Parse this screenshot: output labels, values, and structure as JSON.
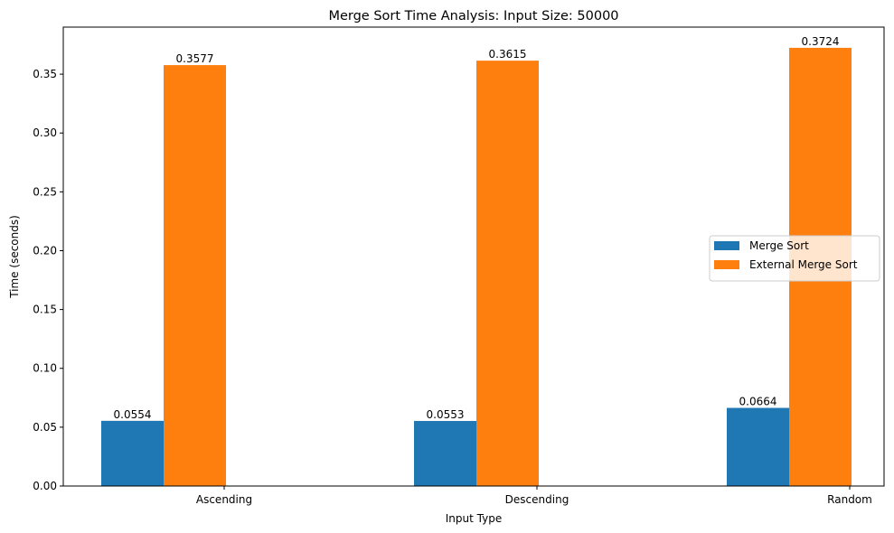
{
  "chart_data": {
    "type": "bar",
    "title": "Merge Sort Time Analysis: Input Size: 50000",
    "xlabel": "Input Type",
    "ylabel": "Time (seconds)",
    "categories": [
      "Ascending",
      "Descending",
      "Random"
    ],
    "series": [
      {
        "name": "Merge Sort",
        "values": [
          0.0554,
          0.0553,
          0.0664
        ],
        "labels": [
          "0.0554",
          "0.0553",
          "0.0664"
        ],
        "color": "#1f77b4"
      },
      {
        "name": "External Merge Sort",
        "values": [
          0.3577,
          0.3615,
          0.3724
        ],
        "labels": [
          "0.3577",
          "0.3615",
          "0.3724"
        ],
        "color": "#ff7f0e"
      }
    ],
    "ylim": [
      0,
      0.39
    ],
    "yticks": [
      0.0,
      0.05,
      0.1,
      0.15,
      0.2,
      0.25,
      0.3,
      0.35
    ],
    "ytick_labels": [
      "0.00",
      "0.05",
      "0.10",
      "0.15",
      "0.20",
      "0.25",
      "0.30",
      "0.35"
    ],
    "grid": false,
    "legend_position": "center-right"
  }
}
